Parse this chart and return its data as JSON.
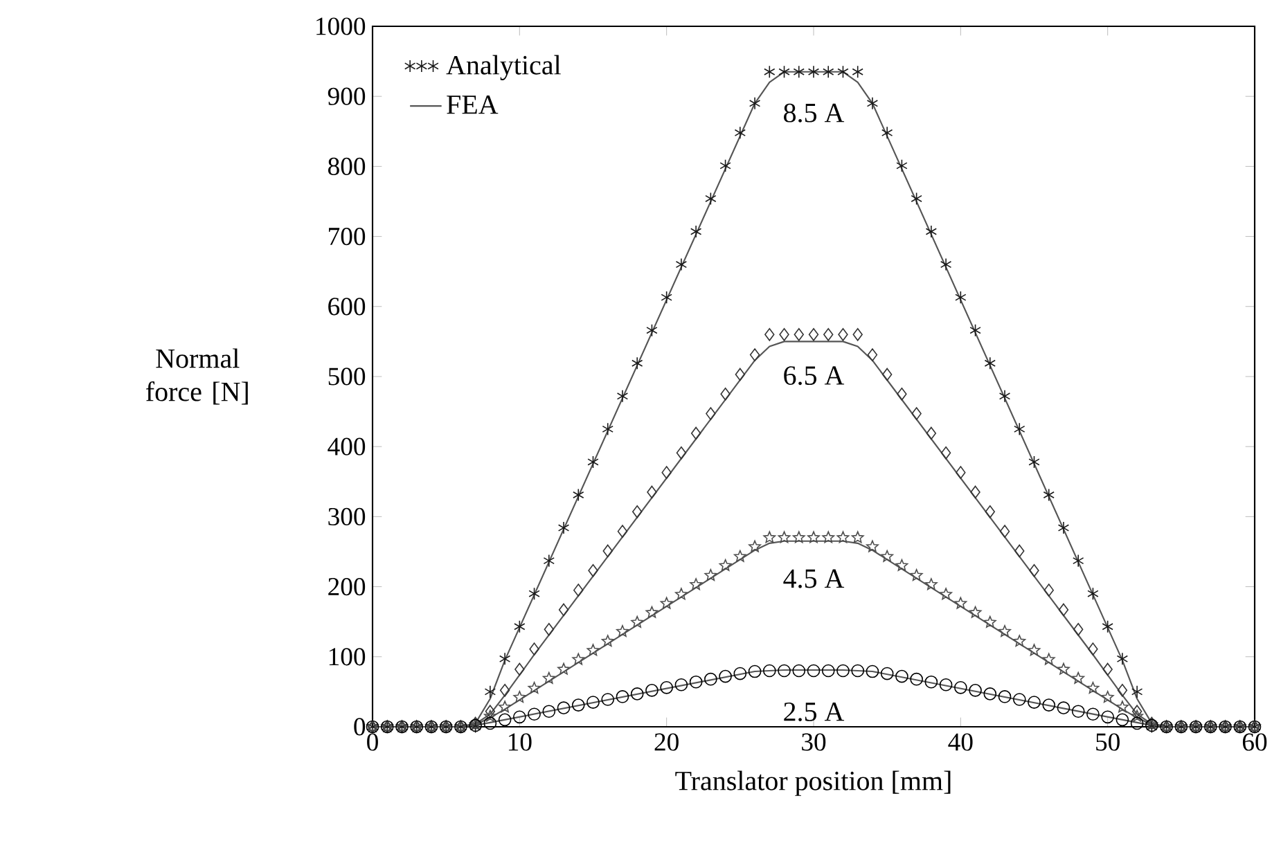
{
  "chart_data": {
    "type": "line",
    "xlabel": "Translator position [mm]",
    "ylabel": "Normal force [N]",
    "x": [
      0,
      1,
      2,
      3,
      4,
      5,
      6,
      7,
      8,
      9,
      10,
      11,
      12,
      13,
      14,
      15,
      16,
      17,
      18,
      19,
      20,
      21,
      22,
      23,
      24,
      25,
      26,
      27,
      28,
      29,
      30,
      31,
      32,
      33,
      34,
      35,
      36,
      37,
      38,
      39,
      40,
      41,
      42,
      43,
      44,
      45,
      46,
      47,
      48,
      49,
      50,
      51,
      52,
      53,
      54,
      55,
      56,
      57,
      58,
      59,
      60
    ],
    "xlim": [
      0,
      60
    ],
    "ylim": [
      0,
      1000
    ],
    "xticks": [
      0,
      10,
      20,
      30,
      40,
      50,
      60
    ],
    "yticks": [
      0,
      100,
      200,
      300,
      400,
      500,
      600,
      700,
      800,
      900,
      1000
    ],
    "legend": "top left",
    "series": [
      {
        "name": "Analytical",
        "type": "scatter",
        "marker": "cross",
        "color": "#1a1a1a",
        "values": [
          0,
          0,
          0,
          0,
          0,
          0,
          0,
          0,
          50,
          97,
          143,
          190,
          237,
          284,
          331,
          378,
          425,
          472,
          519,
          566,
          613,
          660,
          707,
          754,
          801,
          848,
          890,
          935,
          935,
          935,
          935,
          935,
          935,
          935,
          890,
          848,
          801,
          754,
          707,
          660,
          613,
          566,
          519,
          472,
          425,
          378,
          331,
          284,
          237,
          190,
          143,
          97,
          50,
          0,
          0,
          0,
          0,
          0,
          0,
          0,
          0
        ]
      },
      {
        "name": "FEA",
        "marker": "none",
        "color": "#555555",
        "x": [
          0,
          6,
          7,
          8,
          9,
          26,
          27,
          28,
          32,
          33,
          34,
          51,
          52,
          53,
          54,
          60
        ],
        "values": [
          0,
          0,
          5,
          40,
          95,
          890,
          920,
          935,
          935,
          920,
          890,
          95,
          40,
          5,
          0,
          0
        ]
      },
      {
        "type": "scatter",
        "marker": "diamond",
        "color": "#333333",
        "values": [
          0,
          0,
          0,
          0,
          0,
          0,
          0,
          5,
          22,
          52,
          82,
          111,
          139,
          167,
          195,
          223,
          251,
          279,
          307,
          335,
          363,
          391,
          419,
          447,
          475,
          503,
          531,
          560,
          560,
          560,
          560,
          560,
          560,
          560,
          531,
          503,
          475,
          447,
          419,
          391,
          363,
          335,
          307,
          279,
          251,
          223,
          195,
          167,
          139,
          111,
          82,
          52,
          22,
          5,
          0,
          0,
          0,
          0,
          0,
          0,
          0
        ]
      },
      {
        "marker": "none",
        "color": "#555555",
        "x": [
          1,
          6,
          7,
          8,
          9,
          10,
          11,
          26,
          27,
          28,
          32,
          33,
          34,
          49,
          50,
          51,
          52,
          53,
          54,
          59
        ],
        "values": [
          0,
          0,
          4,
          18,
          45,
          74,
          103,
          523,
          543,
          550,
          550,
          543,
          523,
          103,
          74,
          45,
          18,
          4,
          0,
          0
        ]
      },
      {
        "type": "scatter",
        "marker": "star",
        "color": "#4d4d4d",
        "values": [
          0,
          0,
          0,
          0,
          0,
          0,
          0,
          3,
          15,
          28,
          42,
          55,
          69,
          82,
          96,
          109,
          122,
          136,
          149,
          163,
          176,
          189,
          203,
          216,
          230,
          243,
          257,
          270,
          270,
          270,
          270,
          270,
          270,
          270,
          257,
          243,
          230,
          216,
          203,
          189,
          176,
          163,
          149,
          136,
          122,
          109,
          96,
          82,
          69,
          55,
          42,
          28,
          15,
          3,
          0,
          0,
          0,
          0,
          0,
          0,
          0
        ]
      },
      {
        "marker": "none",
        "color": "#555555",
        "x": [
          2,
          6,
          7,
          8,
          9,
          26,
          27,
          28,
          32,
          33,
          34,
          51,
          52,
          53,
          54,
          58
        ],
        "values": [
          0,
          0,
          3,
          13,
          25,
          252,
          262,
          265,
          265,
          262,
          252,
          25,
          13,
          3,
          0,
          0
        ]
      },
      {
        "type": "scatter",
        "marker": "circle",
        "color": "#000000",
        "values": [
          0,
          0,
          0,
          0,
          0,
          0,
          0,
          2,
          5,
          10,
          14,
          18,
          22,
          27,
          31,
          35,
          39,
          43,
          47,
          52,
          56,
          60,
          64,
          68,
          72,
          76,
          79,
          80,
          80,
          80,
          80,
          80,
          80,
          80,
          79,
          76,
          72,
          68,
          64,
          60,
          56,
          52,
          47,
          43,
          39,
          35,
          31,
          27,
          22,
          18,
          14,
          10,
          5,
          2,
          0,
          0,
          0,
          0,
          0,
          0,
          0
        ]
      },
      {
        "marker": "none",
        "color": "#555555",
        "x": [
          3,
          6,
          7,
          8,
          26,
          27,
          28,
          32,
          33,
          34,
          52,
          53,
          54,
          57
        ],
        "values": [
          0,
          0,
          2,
          6,
          79,
          80,
          81,
          81,
          80,
          79,
          6,
          2,
          0,
          0
        ]
      }
    ],
    "annotations": [
      "8.5 A",
      "6.5 A",
      "4.5 A",
      "2.5 A"
    ]
  }
}
